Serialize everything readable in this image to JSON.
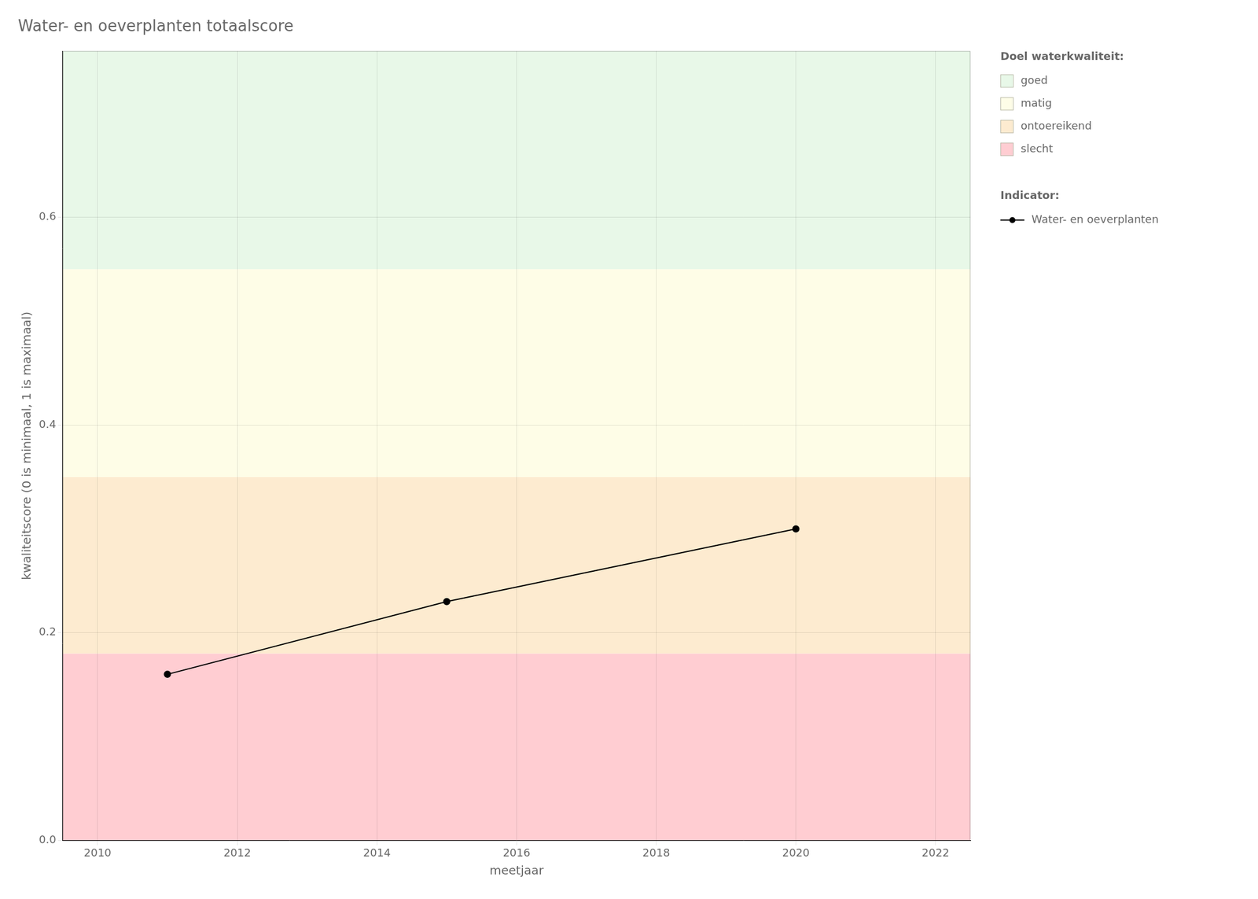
{
  "chart_data": {
    "type": "line",
    "title": "Water- en oeverplanten totaalscore",
    "xlabel": "meetjaar",
    "ylabel": "kwaliteitscore (0 is minimaal, 1 is maximaal)",
    "x": [
      2011,
      2015,
      2020
    ],
    "series": [
      {
        "name": "Water- en oeverplanten",
        "color": "#000000",
        "marker": "circle",
        "line_style": "solid",
        "values": [
          0.16,
          0.23,
          0.3
        ]
      }
    ],
    "xlim": [
      2009.5,
      2022.5
    ],
    "xticks": [
      2010,
      2012,
      2014,
      2016,
      2018,
      2020,
      2022
    ],
    "ylim": [
      0.0,
      0.76
    ],
    "yticks": [
      {
        "value": 0.0,
        "label": "0.0"
      },
      0.2,
      0.4,
      0.6
    ],
    "grid": true,
    "legend": "right",
    "bands_title": "Doel waterkwaliteit:",
    "series_title": "Indicator:",
    "bands": [
      {
        "ymin": 0.0,
        "ymax": 0.18,
        "color": "#FFCDD2",
        "label": "slecht"
      },
      {
        "ymin": 0.18,
        "ymax": 0.35,
        "color": "#FDEBD0",
        "label": "ontoereikend"
      },
      {
        "ymin": 0.35,
        "ymax": 0.55,
        "color": "#FEFDE7",
        "label": "matig"
      },
      {
        "ymin": 0.55,
        "ymax": 0.76,
        "color": "#E8F8E8",
        "label": "goed"
      }
    ]
  }
}
